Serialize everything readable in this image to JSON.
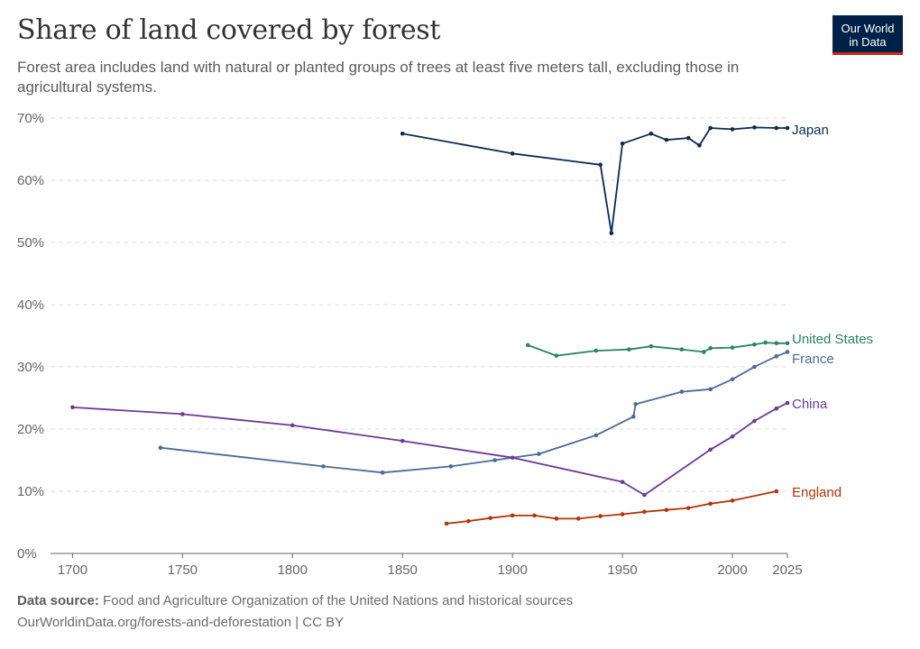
{
  "header": {
    "title": "Share of land covered by forest",
    "subtitle": "Forest area includes land with natural or planted groups of trees at least five meters tall, excluding those in agricultural systems.",
    "logo_line1": "Our World",
    "logo_line2": "in Data"
  },
  "footer": {
    "source_label": "Data source:",
    "source_text": "Food and Agriculture Organization of the United Nations and historical sources",
    "url_text": "OurWorldinData.org/forests-and-deforestation | CC BY"
  },
  "colors": {
    "Japan": "#0b2a52",
    "United States": "#2b8466",
    "France": "#4a6a9a",
    "China": "#6c3a94",
    "England": "#b13507",
    "grid": "#dddddd",
    "axis": "#666666"
  },
  "chart_data": {
    "type": "line",
    "xlim": [
      1690,
      2025
    ],
    "ylim": [
      0,
      70
    ],
    "x_ticks": [
      1700,
      1750,
      1800,
      1850,
      1900,
      1950,
      2000,
      2025
    ],
    "x_tick_labels": [
      "1700",
      "1750",
      "1800",
      "1850",
      "1900",
      "1950",
      "2000",
      "2025"
    ],
    "y_ticks": [
      0,
      10,
      20,
      30,
      40,
      50,
      60,
      70
    ],
    "y_tick_labels": [
      "0%",
      "10%",
      "20%",
      "30%",
      "40%",
      "50%",
      "60%",
      "70%"
    ],
    "grid": "horizontal dashed",
    "legend": "labels at line ends (right)",
    "series": [
      {
        "name": "Japan",
        "x": [
          1850,
          1900,
          1940,
          1945,
          1950,
          1963,
          1970,
          1980,
          1985,
          1990,
          2000,
          2010,
          2020,
          2025
        ],
        "y": [
          67.5,
          64.3,
          62.5,
          51.5,
          65.9,
          67.5,
          66.5,
          66.8,
          65.6,
          68.4,
          68.2,
          68.5,
          68.4,
          68.4
        ]
      },
      {
        "name": "United States",
        "x": [
          1907,
          1920,
          1938,
          1953,
          1963,
          1977,
          1987,
          1990,
          2000,
          2010,
          2015,
          2020,
          2025
        ],
        "y": [
          33.5,
          31.8,
          32.6,
          32.8,
          33.3,
          32.8,
          32.4,
          33.0,
          33.1,
          33.6,
          33.9,
          33.8,
          33.8
        ]
      },
      {
        "name": "France",
        "x": [
          1740,
          1814,
          1841,
          1872,
          1892,
          1912,
          1938,
          1955,
          1956,
          1977,
          1990,
          2000,
          2010,
          2020,
          2025
        ],
        "y": [
          17.0,
          14.0,
          13.0,
          14.0,
          15.0,
          16.0,
          19.0,
          22.0,
          24.0,
          26.0,
          26.4,
          28.0,
          30.0,
          31.7,
          32.4
        ]
      },
      {
        "name": "China",
        "x": [
          1700,
          1750,
          1800,
          1850,
          1900,
          1950,
          1960,
          1990,
          2000,
          2010,
          2020,
          2025
        ],
        "y": [
          23.5,
          22.4,
          20.6,
          18.1,
          15.4,
          11.5,
          9.4,
          16.7,
          18.8,
          21.3,
          23.3,
          24.2
        ]
      },
      {
        "name": "England",
        "x": [
          1870,
          1880,
          1890,
          1900,
          1910,
          1920,
          1930,
          1940,
          1950,
          1960,
          1970,
          1980,
          1990,
          2000,
          2020
        ],
        "y": [
          4.8,
          5.2,
          5.7,
          6.1,
          6.1,
          5.6,
          5.6,
          6.0,
          6.3,
          6.7,
          7.0,
          7.3,
          8.0,
          8.5,
          10.0
        ]
      }
    ]
  }
}
